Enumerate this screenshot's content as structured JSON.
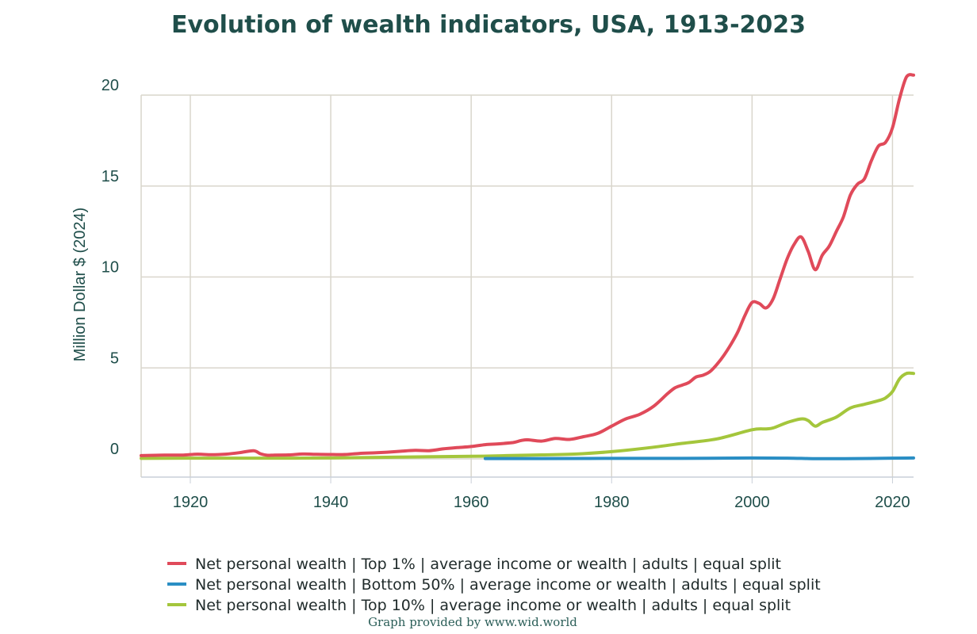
{
  "chart_data": {
    "type": "line",
    "title": "Evolution of wealth indicators, USA, 1913-2023",
    "ylabel": "Million Dollar $ (2024)",
    "xlabel": "",
    "xlim": [
      1913,
      2023
    ],
    "ylim": [
      -1,
      20
    ],
    "grid": true,
    "legend_position": "bottom",
    "x_ticks": [
      1920,
      1940,
      1960,
      1980,
      2000,
      2020
    ],
    "y_ticks": [
      0,
      5,
      10,
      15,
      20
    ],
    "series": [
      {
        "name": "Net personal wealth | Top 1% | average income or wealth | adults | equal split",
        "color": "#e04a5a",
        "x": [
          1913,
          1915,
          1917,
          1919,
          1921,
          1923,
          1925,
          1927,
          1929,
          1930,
          1931,
          1932,
          1934,
          1936,
          1938,
          1940,
          1942,
          1944,
          1946,
          1948,
          1950,
          1952,
          1954,
          1956,
          1958,
          1960,
          1962,
          1964,
          1966,
          1967,
          1968,
          1970,
          1972,
          1974,
          1976,
          1978,
          1980,
          1982,
          1984,
          1986,
          1988,
          1989,
          1990,
          1991,
          1992,
          1993,
          1994,
          1995,
          1996,
          1997,
          1998,
          1999,
          2000,
          2001,
          2002,
          2003,
          2004,
          2005,
          2006,
          2007,
          2008,
          2009,
          2010,
          2011,
          2012,
          2013,
          2014,
          2015,
          2016,
          2017,
          2018,
          2019,
          2020,
          2021,
          2022,
          2023
        ],
        "values": [
          0.18,
          0.2,
          0.21,
          0.21,
          0.26,
          0.23,
          0.26,
          0.34,
          0.45,
          0.28,
          0.2,
          0.21,
          0.22,
          0.27,
          0.25,
          0.24,
          0.24,
          0.3,
          0.33,
          0.37,
          0.42,
          0.47,
          0.45,
          0.55,
          0.62,
          0.68,
          0.78,
          0.83,
          0.9,
          1.0,
          1.05,
          0.98,
          1.12,
          1.07,
          1.22,
          1.4,
          1.8,
          2.2,
          2.45,
          2.9,
          3.6,
          3.9,
          4.05,
          4.2,
          4.5,
          4.6,
          4.8,
          5.2,
          5.7,
          6.3,
          7.0,
          7.9,
          8.6,
          8.55,
          8.3,
          8.8,
          9.9,
          11.0,
          11.8,
          12.2,
          11.4,
          10.4,
          11.2,
          11.7,
          12.5,
          13.3,
          14.5,
          15.1,
          15.4,
          16.4,
          17.2,
          17.4,
          18.2,
          19.8,
          21.0,
          21.1
        ]
      },
      {
        "name": "Net personal wealth | Bottom 50% | average income or wealth | adults | equal split",
        "color": "#2a8ec4",
        "x": [
          1962,
          1970,
          1980,
          1990,
          2000,
          2005,
          2008,
          2010,
          2015,
          2020,
          2023
        ],
        "values": [
          0.02,
          0.02,
          0.03,
          0.03,
          0.05,
          0.04,
          0.02,
          0.01,
          0.02,
          0.04,
          0.05
        ]
      },
      {
        "name": "Net personal wealth | Top 10% | average income or wealth | adults | equal split",
        "color": "#a4c63c",
        "x": [
          1913,
          1920,
          1930,
          1940,
          1950,
          1960,
          1965,
          1970,
          1975,
          1980,
          1985,
          1990,
          1995,
          2000,
          2002,
          2003,
          2005,
          2007,
          2008,
          2009,
          2010,
          2012,
          2014,
          2016,
          2018,
          2019,
          2020,
          2021,
          2022,
          2023
        ],
        "values": [
          0.03,
          0.04,
          0.04,
          0.05,
          0.1,
          0.14,
          0.18,
          0.22,
          0.27,
          0.4,
          0.6,
          0.85,
          1.1,
          1.6,
          1.65,
          1.7,
          2.0,
          2.2,
          2.1,
          1.8,
          2.0,
          2.3,
          2.8,
          3.0,
          3.2,
          3.35,
          3.7,
          4.4,
          4.7,
          4.7
        ]
      }
    ]
  },
  "credit": "Graph provided by www.wid.world"
}
